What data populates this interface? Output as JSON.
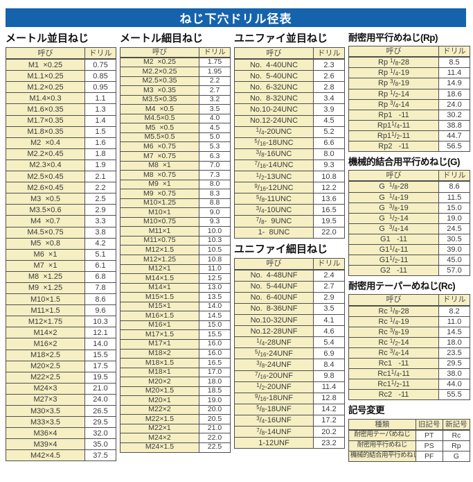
{
  "page_title": "ねじ下穴ドリル径表",
  "labels": {
    "name_header": "呼び",
    "drill_header": "ドリル"
  },
  "colors": {
    "banner_blue": "#1563ad",
    "cell_cream": "#f5efc3",
    "border": "#4d4d4d"
  },
  "sections": {
    "metric_coarse": {
      "title": "メートル並目ねじ",
      "rows": [
        [
          "M1  ×0.25",
          "0.75"
        ],
        [
          "M1.1×0.25",
          "0.85"
        ],
        [
          "M1.2×0.25",
          "0.95"
        ],
        [
          "M1.4×0.3",
          "1.1"
        ],
        [
          "M1.6×0.35",
          "1.3"
        ],
        [
          "M1.7×0.35",
          "1.4"
        ],
        [
          "M1.8×0.35",
          "1.5"
        ],
        [
          "M2  ×0.4",
          "1.6"
        ],
        [
          "M2.2×0.45",
          "1.8"
        ],
        [
          "M2.3×0.4",
          "1.9"
        ],
        [
          "M2.5×0.45",
          "2.1"
        ],
        [
          "M2.6×0.45",
          "2.2"
        ],
        [
          "M3  ×0.5",
          "2.5"
        ],
        [
          "M3.5×0.6",
          "2.9"
        ],
        [
          "M4  ×0.7",
          "3.3"
        ],
        [
          "M4.5×0.75",
          "3.8"
        ],
        [
          "M5  ×0.8",
          "4.2"
        ],
        [
          "M6  ×1",
          "5.1"
        ],
        [
          "M7  ×1",
          "6.1"
        ],
        [
          "M8  ×1.25",
          "6.8"
        ],
        [
          "M9  ×1.25",
          "7.8"
        ],
        [
          "M10×1.5",
          "8.6"
        ],
        [
          "M11×1.5",
          "9.6"
        ],
        [
          "M12×1.75",
          "10.3"
        ],
        [
          "M14×2",
          "12.1"
        ],
        [
          "M16×2",
          "14.0"
        ],
        [
          "M18×2.5",
          "15.5"
        ],
        [
          "M20×2.5",
          "17.5"
        ],
        [
          "M22×2.5",
          "19.5"
        ],
        [
          "M24×3",
          "21.0"
        ],
        [
          "M27×3",
          "24.0"
        ],
        [
          "M30×3.5",
          "26.5"
        ],
        [
          "M33×3.5",
          "29.5"
        ],
        [
          "M36×4",
          "32.0"
        ],
        [
          "M39×4",
          "35.0"
        ],
        [
          "M42×4.5",
          "37.5"
        ]
      ]
    },
    "metric_fine": {
      "title": "メートル細目ねじ",
      "rows": [
        [
          "M2  ×0.25",
          "1.75"
        ],
        [
          "M2.2×0.25",
          "1.95"
        ],
        [
          "M2.5×0.35",
          "2.2"
        ],
        [
          "M3  ×0.35",
          "2.7"
        ],
        [
          "M3.5×0.35",
          "3.2"
        ],
        [
          "M4  ×0.5",
          "3.5"
        ],
        [
          "M4.5×0.5",
          "4.0"
        ],
        [
          "M5  ×0.5",
          "4.5"
        ],
        [
          "M5.5×0.5",
          "5.0"
        ],
        [
          "M6  ×0.75",
          "5.3"
        ],
        [
          "M7  ×0.75",
          "6.3"
        ],
        [
          "M8  ×1",
          "7.0"
        ],
        [
          "M8  ×0.75",
          "7.3"
        ],
        [
          "M9  ×1",
          "8.0"
        ],
        [
          "M9  ×0.75",
          "8.3"
        ],
        [
          "M10×1.25",
          "8.8"
        ],
        [
          "M10×1",
          "9.0"
        ],
        [
          "M10×0.75",
          "9.3"
        ],
        [
          "M11×1",
          "10.0"
        ],
        [
          "M11×0.75",
          "10.3"
        ],
        [
          "M12×1.5",
          "10.5"
        ],
        [
          "M12×1.25",
          "10.8"
        ],
        [
          "M12×1",
          "11.0"
        ],
        [
          "M14×1.5",
          "12.5"
        ],
        [
          "M14×1",
          "13.0"
        ],
        [
          "M15×1.5",
          "13.5"
        ],
        [
          "M15×1",
          "14.0"
        ],
        [
          "M16×1.5",
          "14.5"
        ],
        [
          "M16×1",
          "15.0"
        ],
        [
          "M17×1.5",
          "15.5"
        ],
        [
          "M17×1",
          "16.0"
        ],
        [
          "M18×2",
          "16.0"
        ],
        [
          "M18×1.5",
          "16.5"
        ],
        [
          "M18×1",
          "17.0"
        ],
        [
          "M20×2",
          "18.0"
        ],
        [
          "M20×1.5",
          "18.5"
        ],
        [
          "M20×1",
          "19.0"
        ],
        [
          "M22×2",
          "20.0"
        ],
        [
          "M22×1.5",
          "20.5"
        ],
        [
          "M22×1",
          "21.0"
        ],
        [
          "M24×2",
          "22.0"
        ],
        [
          "M24×1.5",
          "22.5"
        ]
      ]
    },
    "unified_coarse": {
      "title": "ユニファイ並目ねじ",
      "rows": [
        [
          "No.  4-40UNC",
          "2.3"
        ],
        [
          "No.  5-40UNC",
          "2.6"
        ],
        [
          "No.  6-32UNC",
          "2.8"
        ],
        [
          "No.  8-32UNC",
          "3.4"
        ],
        [
          "No.10-24UNC",
          "3.9"
        ],
        [
          "No.12-24UNC",
          "4.5"
        ],
        [
          "{1/4}-20UNC",
          "5.2"
        ],
        [
          "{5/16}-18UNC",
          "6.6"
        ],
        [
          "{3/8}-16UNC",
          "8.0"
        ],
        [
          "{7/16}-14UNC",
          "9.3"
        ],
        [
          "{1/2}-13UNC",
          "10.8"
        ],
        [
          "{9/16}-12UNC",
          "12.2"
        ],
        [
          "{5/8}-11UNC",
          "13.6"
        ],
        [
          "{3/4}-10UNC",
          "16.5"
        ],
        [
          "{7/8}-  9UNC",
          "19.5"
        ],
        [
          "1-  8UNC",
          "22.0"
        ]
      ]
    },
    "unified_fine": {
      "title": "ユニファイ細目ねじ",
      "rows": [
        [
          "No.  4-48UNF",
          "2.4"
        ],
        [
          "No.  5-44UNF",
          "2.7"
        ],
        [
          "No.  6-40UNF",
          "2.9"
        ],
        [
          "No.  8-36UNF",
          "3.5"
        ],
        [
          "No.10-32UNF",
          "4.1"
        ],
        [
          "No.12-28UNF",
          "4.6"
        ],
        [
          "{1/4}-28UNF",
          "5.4"
        ],
        [
          "{5/16}-24UNF",
          "6.9"
        ],
        [
          "{3/8}-24UNF",
          "8.4"
        ],
        [
          "{7/16}-20UNF",
          "9.8"
        ],
        [
          "{1/2}-20UNF",
          "11.4"
        ],
        [
          "{9/16}-18UNF",
          "12.8"
        ],
        [
          "{5/8}-18UNF",
          "14.2"
        ],
        [
          "{3/4}-16UNF",
          "17.2"
        ],
        [
          "{7/8}-14UNF",
          "20.2"
        ],
        [
          "1-12UNF",
          "23.2"
        ]
      ]
    },
    "rp": {
      "title": "耐密用平行めねじ(Rp)",
      "rows": [
        [
          "Rp {1/8}-28",
          "8.5"
        ],
        [
          "Rp {1/4}-19",
          "11.4"
        ],
        [
          "Rp {3/8}-19",
          "14.9"
        ],
        [
          "Rp {1/2}-14",
          "18.6"
        ],
        [
          "Rp {3/4}-14",
          "24.0"
        ],
        [
          "Rp1   -11",
          "30.2"
        ],
        [
          "Rp1{1/4}-11",
          "38.8"
        ],
        [
          "Rp1{1/2}-11",
          "44.7"
        ],
        [
          "Rp2   -11",
          "56.5"
        ]
      ]
    },
    "g": {
      "title": "機械的結合用平行めねじ(G)",
      "rows": [
        [
          "G  {1/8}-28",
          "8.6"
        ],
        [
          "G  {1/4}-19",
          "11.5"
        ],
        [
          "G  {3/8}-19",
          "15.0"
        ],
        [
          "G  {1/2}-14",
          "19.0"
        ],
        [
          "G  {3/4}-14",
          "24.5"
        ],
        [
          "G1   -11",
          "30.5"
        ],
        [
          "G1{1/4}-11",
          "39.0"
        ],
        [
          "G1{1/2}-11",
          "45.0"
        ],
        [
          "G2   -11",
          "57.0"
        ]
      ]
    },
    "rc": {
      "title": "耐密用テーパーめねじ(Rc)",
      "rows": [
        [
          "Rc {1/8}-28",
          "8.2"
        ],
        [
          "Rc {1/4}-19",
          "11.0"
        ],
        [
          "Rc {3/8}-19",
          "14.5"
        ],
        [
          "Rc {1/2}-14",
          "18.0"
        ],
        [
          "Rc {3/4}-14",
          "23.5"
        ],
        [
          "Rc1   -11",
          "29.5"
        ],
        [
          "Rc1{1/4}-11",
          "38.0"
        ],
        [
          "Rc1{1/2}-11",
          "44.0"
        ],
        [
          "Rc2   -11",
          "55.5"
        ]
      ]
    },
    "symbol_change": {
      "title": "記号変更",
      "headers": [
        "種類",
        "旧記号",
        "新記号"
      ],
      "rows": [
        [
          "耐密用テーパめねじ",
          "PT",
          "Rc"
        ],
        [
          "耐密用平行めねじ",
          "PS",
          "Rp"
        ],
        [
          "機械的結合用平行めねじ",
          "PF",
          "G"
        ]
      ]
    }
  }
}
